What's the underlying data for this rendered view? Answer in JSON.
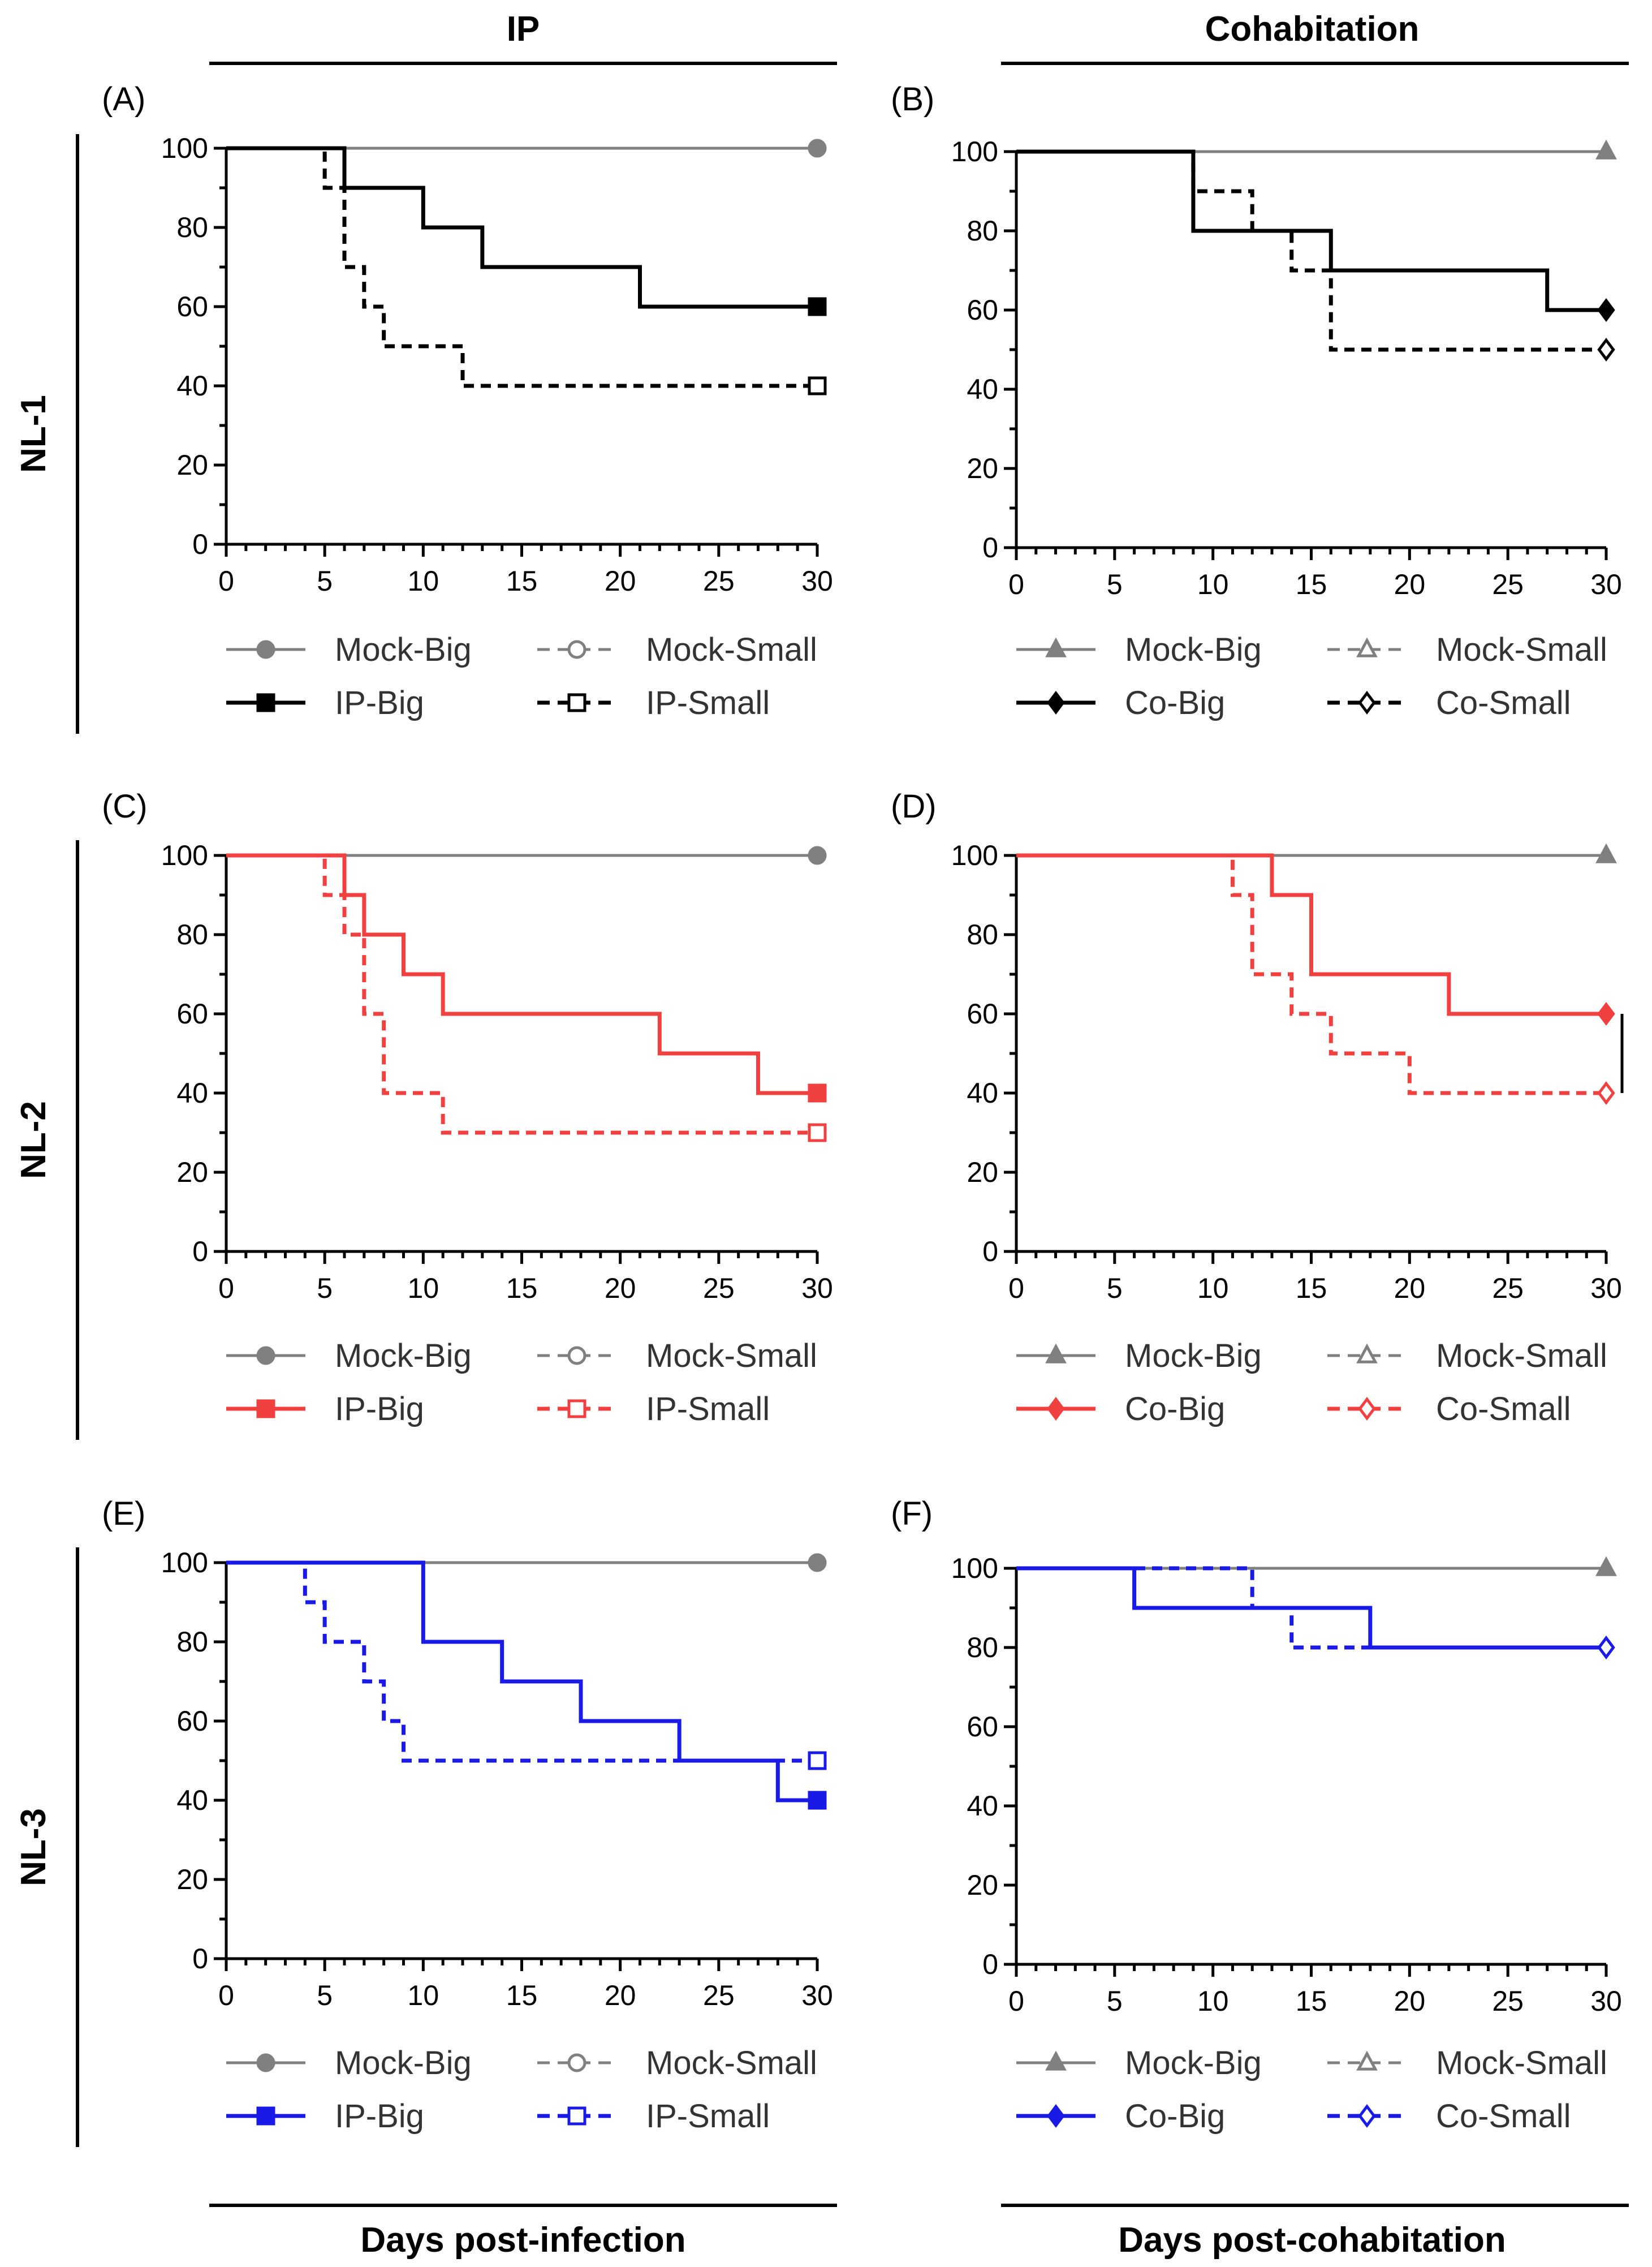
{
  "headers": {
    "left": "IP",
    "right": "Cohabitation",
    "bottom_left": "Days post-infection",
    "bottom_right": "Days post-cohabitation"
  },
  "rows": [
    "NL-1",
    "NL-2",
    "NL-3"
  ],
  "colors": {
    "mock": "#808080",
    "black": "#000000",
    "red": "#f04040",
    "blue": "#1a1ae6"
  },
  "chart_data": [
    {
      "panel": "(A)",
      "type": "line",
      "step": true,
      "xlim": [
        0,
        30
      ],
      "ylim": [
        0,
        100
      ],
      "xticks": [
        0,
        5,
        10,
        15,
        20,
        25,
        30
      ],
      "yticks": [
        0,
        20,
        40,
        60,
        80,
        100
      ],
      "series": [
        {
          "name": "Mock-Big",
          "color": "#808080",
          "dash": false,
          "marker": "circle",
          "filled": true,
          "x": [
            0,
            30
          ],
          "y": [
            100,
            100
          ]
        },
        {
          "name": "Mock-Small",
          "color": "#808080",
          "dash": true,
          "marker": "circle",
          "filled": false,
          "x": [
            0,
            30
          ],
          "y": [
            100,
            100
          ]
        },
        {
          "name": "IP-Big",
          "color": "#000000",
          "dash": false,
          "marker": "square",
          "filled": true,
          "x": [
            0,
            6,
            10,
            13,
            21,
            30
          ],
          "y": [
            100,
            90,
            80,
            70,
            60,
            60
          ]
        },
        {
          "name": "IP-Small",
          "color": "#000000",
          "dash": true,
          "marker": "square",
          "filled": false,
          "x": [
            0,
            5,
            6,
            7,
            8,
            10,
            12,
            30
          ],
          "y": [
            100,
            90,
            70,
            60,
            50,
            50,
            40,
            40
          ]
        }
      ]
    },
    {
      "panel": "(B)",
      "type": "line",
      "step": true,
      "xlim": [
        0,
        30
      ],
      "ylim": [
        0,
        100
      ],
      "xticks": [
        0,
        5,
        10,
        15,
        20,
        25,
        30
      ],
      "yticks": [
        0,
        20,
        40,
        60,
        80,
        100
      ],
      "series": [
        {
          "name": "Mock-Big",
          "color": "#808080",
          "dash": false,
          "marker": "triangle",
          "filled": true,
          "x": [
            0,
            30
          ],
          "y": [
            100,
            100
          ]
        },
        {
          "name": "Mock-Small",
          "color": "#808080",
          "dash": true,
          "marker": "triangle",
          "filled": false,
          "x": [
            0,
            30
          ],
          "y": [
            100,
            100
          ]
        },
        {
          "name": "Co-Big",
          "color": "#000000",
          "dash": false,
          "marker": "diamond",
          "filled": true,
          "x": [
            0,
            9,
            16,
            27,
            30
          ],
          "y": [
            100,
            80,
            70,
            60,
            60
          ]
        },
        {
          "name": "Co-Small",
          "color": "#000000",
          "dash": true,
          "marker": "diamond",
          "filled": false,
          "x": [
            0,
            9,
            12,
            14,
            16,
            30
          ],
          "y": [
            100,
            90,
            80,
            70,
            50,
            50
          ]
        }
      ]
    },
    {
      "panel": "(C)",
      "type": "line",
      "step": true,
      "xlim": [
        0,
        30
      ],
      "ylim": [
        0,
        100
      ],
      "xticks": [
        0,
        5,
        10,
        15,
        20,
        25,
        30
      ],
      "yticks": [
        0,
        20,
        40,
        60,
        80,
        100
      ],
      "series": [
        {
          "name": "Mock-Big",
          "color": "#808080",
          "dash": false,
          "marker": "circle",
          "filled": true,
          "x": [
            0,
            30
          ],
          "y": [
            100,
            100
          ]
        },
        {
          "name": "Mock-Small",
          "color": "#808080",
          "dash": true,
          "marker": "circle",
          "filled": false,
          "x": [
            0,
            30
          ],
          "y": [
            100,
            100
          ]
        },
        {
          "name": "IP-Big",
          "color": "#f04040",
          "dash": false,
          "marker": "square",
          "filled": true,
          "x": [
            0,
            6,
            7,
            9,
            11,
            22,
            27,
            30
          ],
          "y": [
            100,
            90,
            80,
            70,
            60,
            50,
            40,
            40
          ]
        },
        {
          "name": "IP-Small",
          "color": "#f04040",
          "dash": true,
          "marker": "square",
          "filled": false,
          "x": [
            0,
            5,
            6,
            7,
            8,
            11,
            30
          ],
          "y": [
            100,
            90,
            80,
            60,
            40,
            30,
            30
          ]
        }
      ]
    },
    {
      "panel": "(D)",
      "type": "line",
      "step": true,
      "xlim": [
        0,
        30
      ],
      "ylim": [
        0,
        100
      ],
      "xticks": [
        0,
        5,
        10,
        15,
        20,
        25,
        30
      ],
      "yticks": [
        0,
        20,
        40,
        60,
        80,
        100
      ],
      "annotation": "**",
      "series": [
        {
          "name": "Mock-Big",
          "color": "#808080",
          "dash": false,
          "marker": "triangle",
          "filled": true,
          "x": [
            0,
            30
          ],
          "y": [
            100,
            100
          ]
        },
        {
          "name": "Mock-Small",
          "color": "#808080",
          "dash": true,
          "marker": "triangle",
          "filled": false,
          "x": [
            0,
            30
          ],
          "y": [
            100,
            100
          ]
        },
        {
          "name": "Co-Big",
          "color": "#f04040",
          "dash": false,
          "marker": "diamond",
          "filled": true,
          "x": [
            0,
            13,
            15,
            22,
            30
          ],
          "y": [
            100,
            90,
            70,
            60,
            60
          ]
        },
        {
          "name": "Co-Small",
          "color": "#f04040",
          "dash": true,
          "marker": "diamond",
          "filled": false,
          "x": [
            0,
            11,
            12,
            14,
            16,
            20,
            30
          ],
          "y": [
            100,
            90,
            70,
            60,
            50,
            40,
            40
          ]
        }
      ]
    },
    {
      "panel": "(E)",
      "type": "line",
      "step": true,
      "xlim": [
        0,
        30
      ],
      "ylim": [
        0,
        100
      ],
      "xticks": [
        0,
        5,
        10,
        15,
        20,
        25,
        30
      ],
      "yticks": [
        0,
        20,
        40,
        60,
        80,
        100
      ],
      "series": [
        {
          "name": "Mock-Big",
          "color": "#808080",
          "dash": false,
          "marker": "circle",
          "filled": true,
          "x": [
            0,
            30
          ],
          "y": [
            100,
            100
          ]
        },
        {
          "name": "Mock-Small",
          "color": "#808080",
          "dash": true,
          "marker": "circle",
          "filled": false,
          "x": [
            0,
            30
          ],
          "y": [
            100,
            100
          ]
        },
        {
          "name": "IP-Big",
          "color": "#1a1ae6",
          "dash": false,
          "marker": "square",
          "filled": true,
          "x": [
            0,
            10,
            14,
            18,
            23,
            28,
            30
          ],
          "y": [
            100,
            80,
            70,
            60,
            50,
            40,
            40
          ]
        },
        {
          "name": "IP-Small",
          "color": "#1a1ae6",
          "dash": true,
          "marker": "square",
          "filled": false,
          "x": [
            0,
            4,
            5,
            7,
            8,
            9,
            30
          ],
          "y": [
            100,
            90,
            80,
            70,
            60,
            50,
            50
          ]
        }
      ]
    },
    {
      "panel": "(F)",
      "type": "line",
      "step": true,
      "xlim": [
        0,
        30
      ],
      "ylim": [
        0,
        100
      ],
      "xticks": [
        0,
        5,
        10,
        15,
        20,
        25,
        30
      ],
      "yticks": [
        0,
        20,
        40,
        60,
        80,
        100
      ],
      "series": [
        {
          "name": "Mock-Big",
          "color": "#808080",
          "dash": false,
          "marker": "triangle",
          "filled": true,
          "x": [
            0,
            30
          ],
          "y": [
            100,
            100
          ]
        },
        {
          "name": "Mock-Small",
          "color": "#808080",
          "dash": true,
          "marker": "triangle",
          "filled": false,
          "x": [
            0,
            30
          ],
          "y": [
            100,
            100
          ]
        },
        {
          "name": "Co-Big",
          "color": "#1a1ae6",
          "dash": false,
          "marker": "diamond",
          "filled": true,
          "x": [
            0,
            6,
            18,
            30
          ],
          "y": [
            100,
            90,
            80,
            80
          ]
        },
        {
          "name": "Co-Small",
          "color": "#1a1ae6",
          "dash": true,
          "marker": "diamond",
          "filled": false,
          "x": [
            0,
            12,
            14,
            30
          ],
          "y": [
            100,
            90,
            80,
            80
          ]
        }
      ]
    }
  ]
}
